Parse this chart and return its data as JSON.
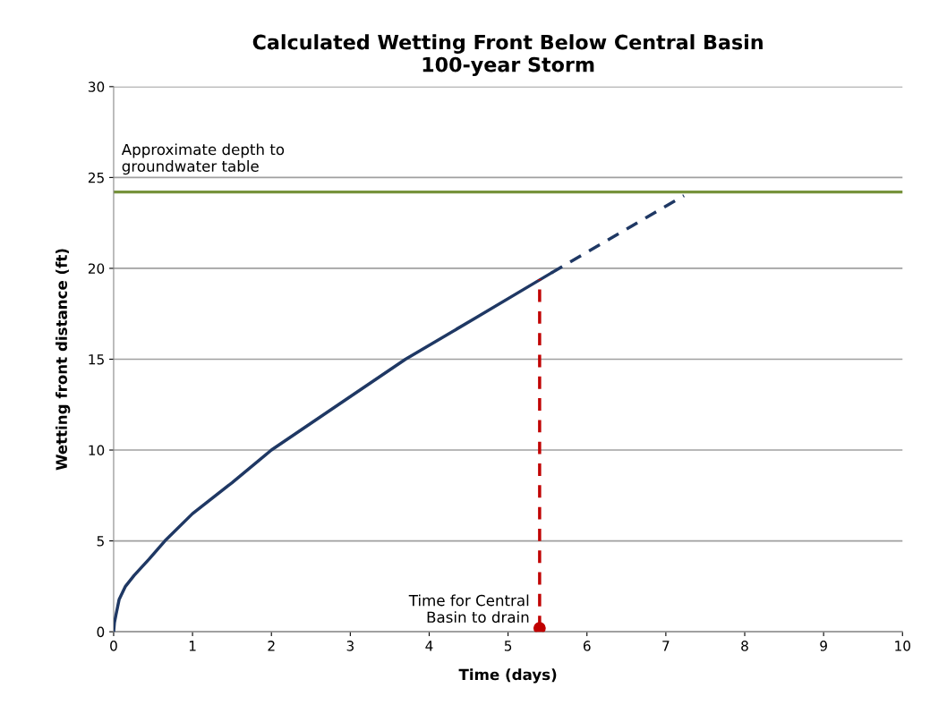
{
  "chart_data": {
    "type": "line",
    "title": "Calculated Wetting Front Below Central Basin\n100-year Storm",
    "xlabel": "Time (days)",
    "ylabel": "Wetting front distance (ft)",
    "series": [
      {
        "color": "#1f3864",
        "line_style": "solid",
        "x": [
          0,
          0.01,
          0.03,
          0.07,
          0.15,
          0.26,
          0.45,
          0.65,
          1.0,
          1.5,
          2.0,
          2.85,
          3.7,
          4.6,
          5.55
        ],
        "values": [
          0,
          0.5,
          0.94,
          1.78,
          2.5,
          3.1,
          4.0,
          5.0,
          6.5,
          8.2,
          10.0,
          12.5,
          15.0,
          17.3,
          19.75
        ]
      },
      {
        "color": "#1f3864",
        "line_style": "dashed",
        "x": [
          5.55,
          7.23
        ],
        "values": [
          19.75,
          24.0
        ]
      },
      {
        "color": "#c00000",
        "line_style": "dashed",
        "x": [
          5.4,
          5.4
        ],
        "values": [
          0.2,
          19.4
        ]
      },
      {
        "type": "scatter",
        "color": "#c00000",
        "marker": "circle",
        "x": [
          5.4
        ],
        "values": [
          0.2
        ]
      }
    ],
    "ref_lines": [
      {
        "axis": "y",
        "value": 24.2,
        "label": "Approximate depth to\ngroundwater table",
        "color": "#77933c",
        "line_style": "solid"
      }
    ],
    "annotations": [
      {
        "text": "Time for Central\nBasin to drain",
        "x": 5.4,
        "y": 0.2
      }
    ],
    "xlim": [
      0,
      10
    ],
    "xticks": [
      0,
      1,
      2,
      3,
      4,
      5,
      6,
      7,
      8,
      9,
      10
    ],
    "ylim": [
      0,
      30
    ],
    "yticks": [
      0,
      5,
      10,
      15,
      20,
      25,
      30
    ],
    "grid": "y",
    "legend": false
  }
}
